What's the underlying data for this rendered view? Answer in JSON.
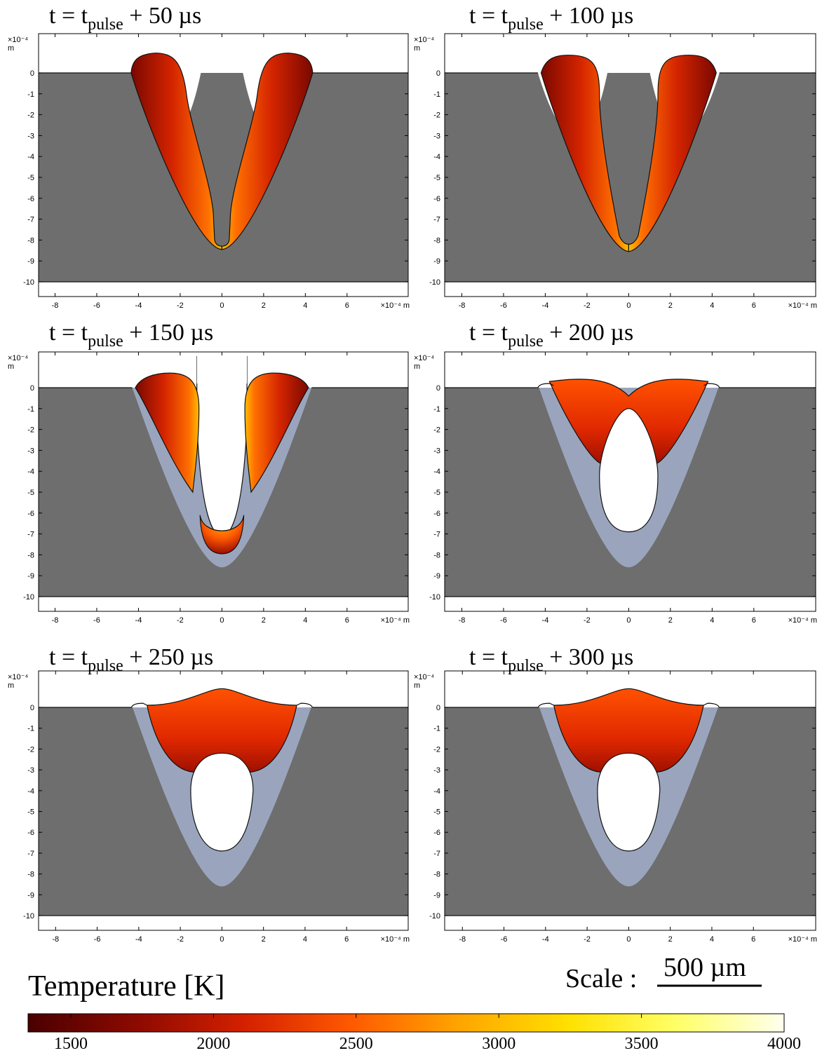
{
  "panels": [
    {
      "title_prefix": "t = t",
      "title_sub": "pulse",
      "title_suffix": " + 50 µs",
      "stage": 0
    },
    {
      "title_prefix": "t = t",
      "title_sub": "pulse",
      "title_suffix": " + 100 µs",
      "stage": 1
    },
    {
      "title_prefix": "t = t",
      "title_sub": "pulse",
      "title_suffix": " + 150 µs",
      "stage": 2
    },
    {
      "title_prefix": "t = t",
      "title_sub": "pulse",
      "title_suffix": " + 200 µs",
      "stage": 3
    },
    {
      "title_prefix": "t = t",
      "title_sub": "pulse",
      "title_suffix": " + 250 µs",
      "stage": 4
    },
    {
      "title_prefix": "t = t",
      "title_sub": "pulse",
      "title_suffix": " + 300 µs",
      "stage": 5
    }
  ],
  "axes": {
    "x_ticks": [
      "-8",
      "-6",
      "-4",
      "-2",
      "0",
      "2",
      "4",
      "6"
    ],
    "x_exponent_label": "×10⁻⁴ m",
    "y_ticks": [
      "0",
      "-1",
      "-2",
      "-3",
      "-4",
      "-5",
      "-6",
      "-7",
      "-8",
      "-9",
      "-10"
    ],
    "y_exponent_label": "×10⁻⁴",
    "y_unit": "m"
  },
  "colorbar": {
    "title": "Temperature [K]",
    "min": 1350,
    "max": 4000,
    "tick_labels": [
      "1500",
      "2000",
      "2500",
      "3000",
      "3500",
      "4000"
    ],
    "tick_values": [
      1500,
      2000,
      2500,
      3000,
      3500,
      4000
    ],
    "colors": [
      "#4a0000",
      "#8c0a00",
      "#d42000",
      "#ff5a00",
      "#ffa500",
      "#ffe000",
      "#ffff66",
      "#ffffee"
    ]
  },
  "scale": {
    "label": "Scale :",
    "value": "500 µm"
  },
  "colors": {
    "solid": "#6e6e6e",
    "resolidified": "#9aa5bd",
    "melt_dark": "#7a0800",
    "melt_mid": "#d42400",
    "melt_hot": "#ff6a00",
    "melt_peak": "#ffc400"
  }
}
